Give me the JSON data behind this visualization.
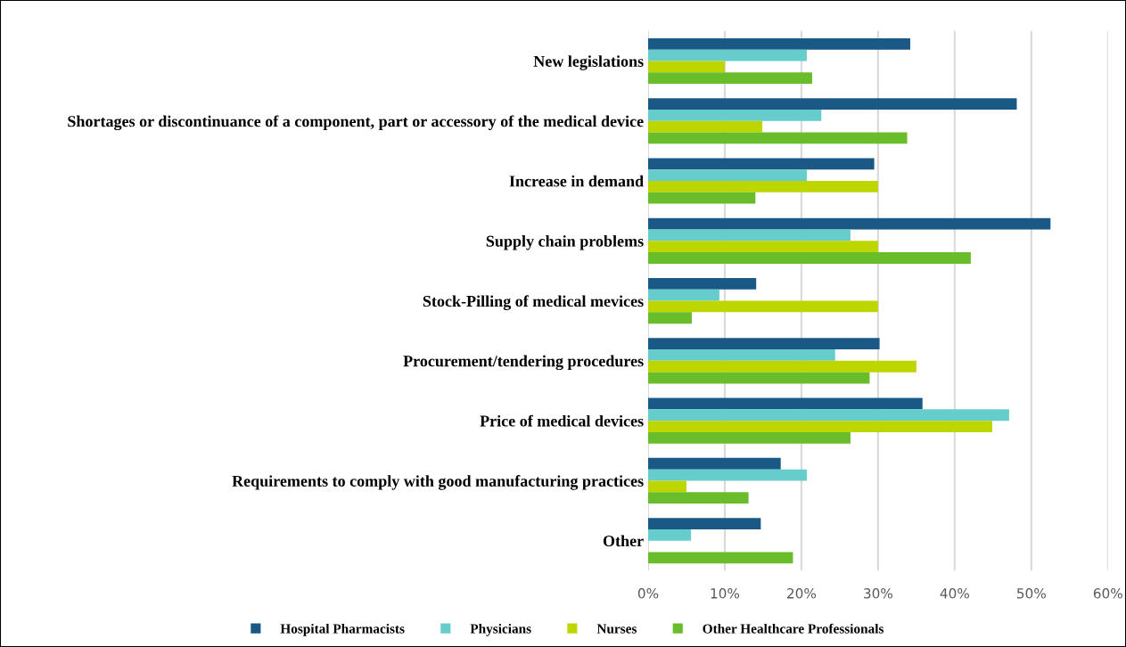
{
  "chart_data": {
    "type": "bar",
    "orientation": "horizontal",
    "categories": [
      "New legislations",
      "Shortages or discontinuance of a component, part or accessory of the medical device",
      "Increase in demand",
      "Supply chain problems",
      "Stock-Pilling of medical mevices",
      "Procurement/tendering procedures",
      "Price of medical devices",
      "Requirements to comply with good manufacturing practices",
      "Other"
    ],
    "series": [
      {
        "name": "Hospital Pharmacists",
        "color": "#1a5886",
        "values": [
          34.2,
          48.1,
          29.5,
          52.5,
          14.1,
          30.2,
          35.8,
          17.3,
          14.7
        ]
      },
      {
        "name": "Physicians",
        "color": "#66cdcc",
        "values": [
          20.7,
          22.6,
          20.7,
          26.4,
          9.3,
          24.4,
          47.1,
          20.7,
          5.6
        ]
      },
      {
        "name": "Nurses",
        "color": "#bed600",
        "values": [
          10,
          14.9,
          30,
          30,
          30,
          35,
          44.9,
          5,
          0
        ]
      },
      {
        "name": "Other Healthcare Professionals",
        "color": "#6abd2a",
        "values": [
          21.4,
          33.8,
          14.0,
          42.1,
          5.7,
          28.9,
          26.4,
          13.1,
          18.9
        ]
      }
    ],
    "xlim": [
      0,
      60
    ],
    "xticks": [
      {
        "value": 0,
        "label": "0%"
      },
      {
        "value": 10,
        "label": "10%"
      },
      {
        "value": 20,
        "label": "20%"
      },
      {
        "value": 30,
        "label": "30%"
      },
      {
        "value": 40,
        "label": "40%"
      },
      {
        "value": 50,
        "label": "50%"
      },
      {
        "value": 60,
        "label": "60%"
      }
    ],
    "grid": "x",
    "legend": "bottom"
  }
}
